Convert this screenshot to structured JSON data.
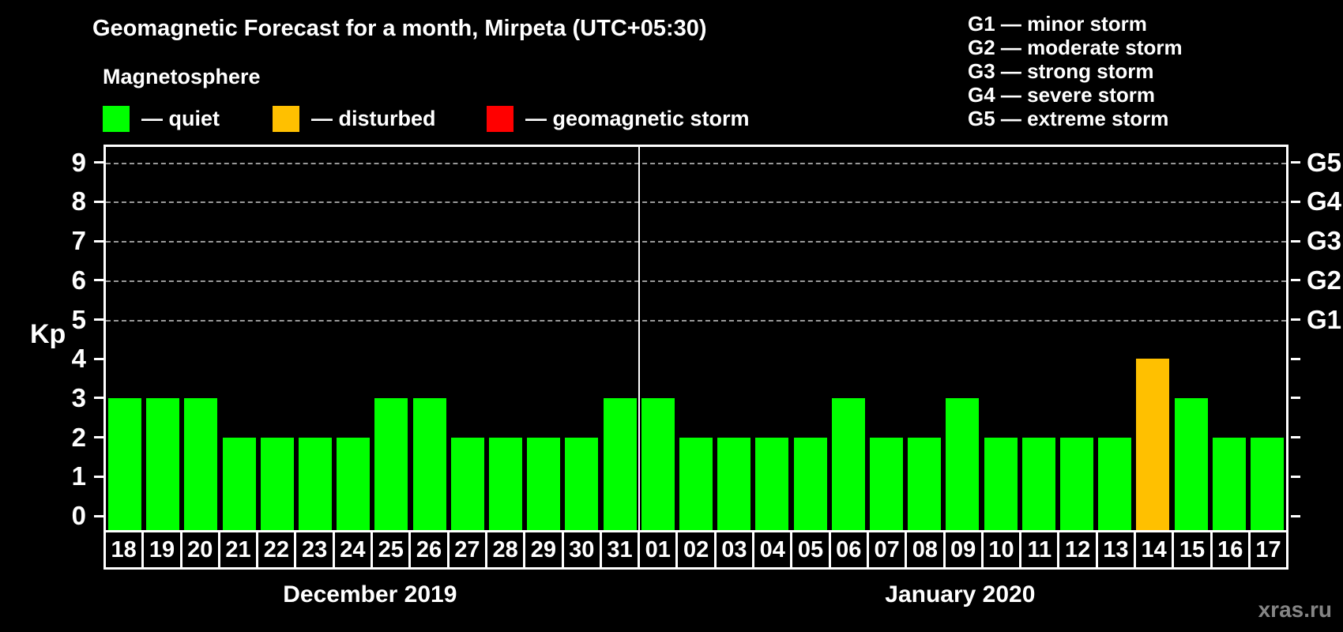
{
  "title": "Geomagnetic Forecast for a month, Mirpeta (UTC+05:30)",
  "subtitle": "Magnetosphere",
  "legend": {
    "items": [
      {
        "key": "quiet",
        "label": "— quiet",
        "color": "#00ff00"
      },
      {
        "key": "disturbed",
        "label": "— disturbed",
        "color": "#ffc000"
      },
      {
        "key": "storm",
        "label": "— geomagnetic storm",
        "color": "#ff0000"
      }
    ]
  },
  "storm_scale": [
    "G1 — minor storm",
    "G2 — moderate storm",
    "G3 — strong storm",
    "G4 — severe storm",
    "G5 — extreme storm"
  ],
  "watermark": "xras.ru",
  "chart_data": {
    "type": "bar",
    "ylabel": "Kp",
    "ylim": [
      0,
      9.4
    ],
    "y_ticks": [
      0,
      1,
      2,
      3,
      4,
      5,
      6,
      7,
      8,
      9
    ],
    "gridlines_at": [
      5,
      6,
      7,
      8,
      9
    ],
    "grid": "dashed-horizontal",
    "right_scale": [
      {
        "kp": 5,
        "label": "G1"
      },
      {
        "kp": 6,
        "label": "G2"
      },
      {
        "kp": 7,
        "label": "G3"
      },
      {
        "kp": 8,
        "label": "G4"
      },
      {
        "kp": 9,
        "label": "G5"
      }
    ],
    "bar_colors": {
      "quiet": "#00ff00",
      "disturbed": "#ffc000",
      "storm": "#ff0000"
    },
    "months": [
      {
        "label": "December 2019",
        "days": [
          "18",
          "19",
          "20",
          "21",
          "22",
          "23",
          "24",
          "25",
          "26",
          "27",
          "28",
          "29",
          "30",
          "31"
        ],
        "kp": [
          3,
          3,
          3,
          2,
          2,
          2,
          2,
          3,
          3,
          2,
          2,
          2,
          2,
          3
        ],
        "status": [
          "quiet",
          "quiet",
          "quiet",
          "quiet",
          "quiet",
          "quiet",
          "quiet",
          "quiet",
          "quiet",
          "quiet",
          "quiet",
          "quiet",
          "quiet",
          "quiet"
        ]
      },
      {
        "label": "January 2020",
        "days": [
          "01",
          "02",
          "03",
          "04",
          "05",
          "06",
          "07",
          "08",
          "09",
          "10",
          "11",
          "12",
          "13",
          "14",
          "15",
          "16",
          "17"
        ],
        "kp": [
          3,
          2,
          2,
          2,
          2,
          3,
          2,
          2,
          3,
          2,
          2,
          2,
          2,
          4,
          3,
          2,
          2
        ],
        "status": [
          "quiet",
          "quiet",
          "quiet",
          "quiet",
          "quiet",
          "quiet",
          "quiet",
          "quiet",
          "quiet",
          "quiet",
          "quiet",
          "quiet",
          "quiet",
          "disturbed",
          "quiet",
          "quiet",
          "quiet"
        ]
      }
    ]
  }
}
